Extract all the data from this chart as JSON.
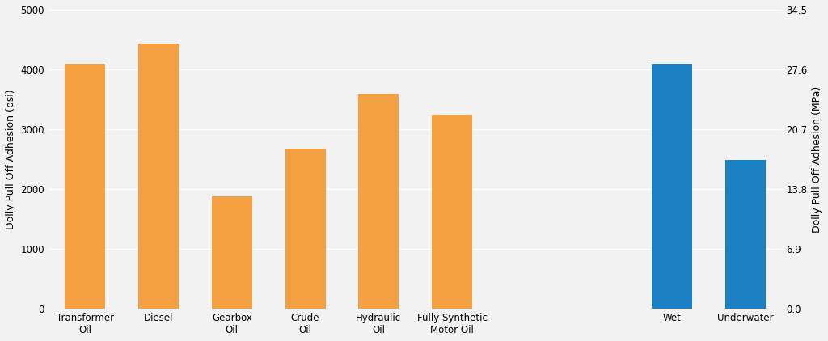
{
  "categories": [
    "Transformer\nOil",
    "Diesel",
    "Gearbox\nOil",
    "Crude\nOil",
    "Hydraulic\nOil",
    "Fully Synthetic\nMotor Oil",
    "",
    "",
    "Wet",
    "Underwater"
  ],
  "values": [
    4100,
    4430,
    1880,
    2670,
    3590,
    3250,
    0,
    0,
    4100,
    2490
  ],
  "bar_colors": [
    "#F5A040",
    "#F5A040",
    "#F5A040",
    "#F5A040",
    "#F5A040",
    "#F5A040",
    null,
    null,
    "#1B7FC4",
    "#1B7FC4"
  ],
  "ylabel_left": "Dolly Pull Off Adhesion (psi)",
  "ylabel_right": "Dolly Pull Off Adhesion (MPa)",
  "ylim_left": [
    0,
    5000
  ],
  "ylim_right": [
    0.0,
    34.5
  ],
  "yticks_left": [
    0,
    1000,
    2000,
    3000,
    4000,
    5000
  ],
  "yticks_right": [
    0.0,
    6.9,
    13.8,
    20.7,
    27.6,
    34.5
  ],
  "background_color": "#f2f2f2",
  "plot_bg_color": "#f2f2f2",
  "grid_color": "#ffffff",
  "bar_width": 0.55,
  "figsize": [
    10.24,
    4.22
  ],
  "dpi": 100,
  "label_fontsize": 9,
  "tick_fontsize": 8.5
}
